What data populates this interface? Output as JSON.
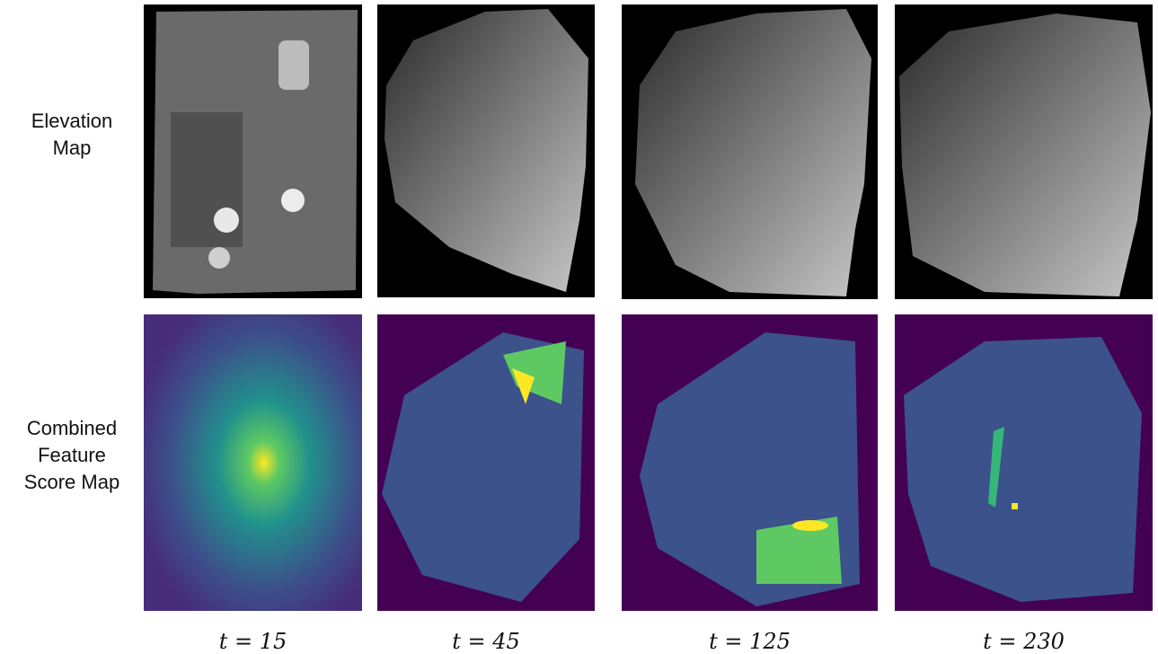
{
  "row_labels": [
    "Elevation Map",
    "Combined Feature Score Map"
  ],
  "column_labels": [
    "t = 15",
    "t = 45",
    "t = 125",
    "t = 230"
  ]
}
